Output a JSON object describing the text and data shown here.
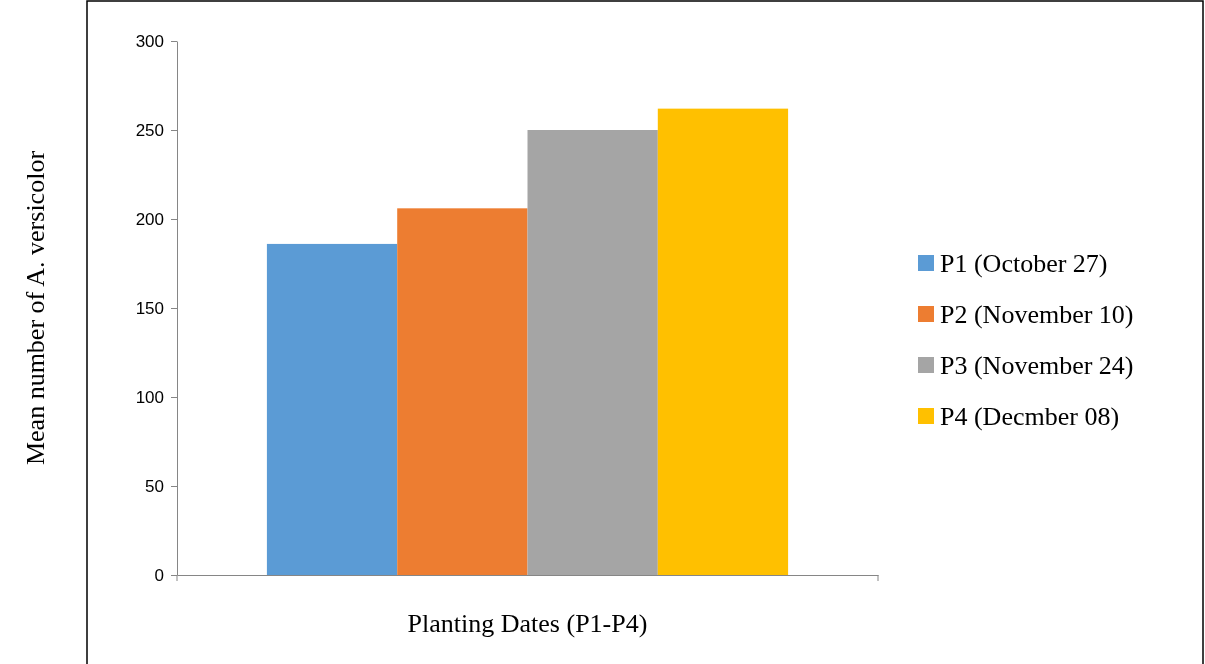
{
  "chart_data": {
    "type": "bar",
    "xlabel": "Planting Dates (P1-P4)",
    "ylabel": "Mean number of A. versicolor",
    "categories": [
      null
    ],
    "series": [
      {
        "name": "P1 (October 27)",
        "color": "#5b9bd5",
        "values": [
          186
        ]
      },
      {
        "name": "P2 (November 10)",
        "color": "#ed7d31",
        "values": [
          206
        ]
      },
      {
        "name": "P3 (November 24)",
        "color": "#a5a5a5",
        "values": [
          250
        ]
      },
      {
        "name": "P4 (Decmber 08)",
        "color": "#ffc000",
        "values": [
          262
        ]
      }
    ],
    "ylim": [
      0,
      300
    ],
    "yticks": [
      0,
      50,
      100,
      150,
      200,
      250,
      300
    ],
    "legend": "right"
  }
}
